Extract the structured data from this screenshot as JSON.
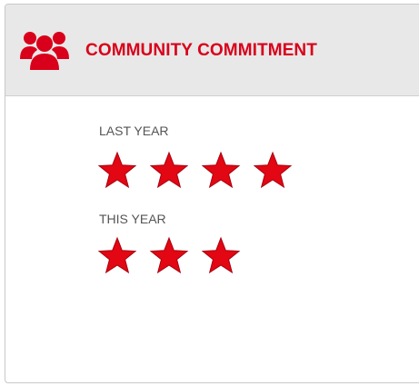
{
  "header": {
    "title": "COMMUNITY COMMITMENT"
  },
  "sections": [
    {
      "label": "LAST YEAR",
      "rating": 4
    },
    {
      "label": "THIS YEAR",
      "rating": 3
    }
  ]
}
